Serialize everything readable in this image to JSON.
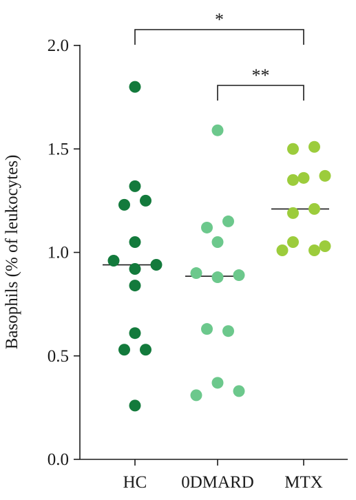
{
  "chart_data": {
    "type": "scatter",
    "ylabel": "Basophils (% of leukocytes)",
    "xlabel": "",
    "ylim": [
      0,
      2.0
    ],
    "yticks": [
      "0.0",
      "0.5",
      "1.0",
      "1.5",
      "2.0"
    ],
    "categories": [
      "HC",
      "0DMARD",
      "MTX"
    ],
    "series": [
      {
        "category": "HC",
        "color": "#137a3c",
        "points": [
          {
            "offset": 0,
            "y": 1.8
          },
          {
            "offset": 0,
            "y": 1.32
          },
          {
            "offset": -0.5,
            "y": 1.23
          },
          {
            "offset": 0.5,
            "y": 1.25
          },
          {
            "offset": 0,
            "y": 1.05
          },
          {
            "offset": -1,
            "y": 0.96
          },
          {
            "offset": 0,
            "y": 0.92
          },
          {
            "offset": 1,
            "y": 0.94
          },
          {
            "offset": 0,
            "y": 0.84
          },
          {
            "offset": 0,
            "y": 0.61
          },
          {
            "offset": -0.5,
            "y": 0.53
          },
          {
            "offset": 0.5,
            "y": 0.53
          },
          {
            "offset": 0,
            "y": 0.26
          }
        ],
        "median": 0.94
      },
      {
        "category": "0DMARD",
        "color": "#6cc88c",
        "points": [
          {
            "offset": 0,
            "y": 1.59
          },
          {
            "offset": -0.5,
            "y": 1.12
          },
          {
            "offset": 0.5,
            "y": 1.15
          },
          {
            "offset": 0,
            "y": 1.05
          },
          {
            "offset": -1,
            "y": 0.9
          },
          {
            "offset": 0,
            "y": 0.88
          },
          {
            "offset": 1,
            "y": 0.89
          },
          {
            "offset": -0.5,
            "y": 0.63
          },
          {
            "offset": 0.5,
            "y": 0.62
          },
          {
            "offset": -1,
            "y": 0.31
          },
          {
            "offset": 0,
            "y": 0.37
          },
          {
            "offset": 1,
            "y": 0.33
          }
        ],
        "median": 0.885
      },
      {
        "category": "MTX",
        "color": "#9ccc3c",
        "points": [
          {
            "offset": -0.5,
            "y": 1.5
          },
          {
            "offset": 0.5,
            "y": 1.51
          },
          {
            "offset": -0.5,
            "y": 1.35
          },
          {
            "offset": 0,
            "y": 1.36
          },
          {
            "offset": 1,
            "y": 1.37
          },
          {
            "offset": -0.5,
            "y": 1.19
          },
          {
            "offset": 0.5,
            "y": 1.21
          },
          {
            "offset": -1,
            "y": 1.01
          },
          {
            "offset": -0.5,
            "y": 1.05
          },
          {
            "offset": 0.5,
            "y": 1.01
          },
          {
            "offset": 1,
            "y": 1.03
          }
        ],
        "median": 1.21
      }
    ],
    "significance": [
      {
        "from": "HC",
        "to": "MTX",
        "label": "*"
      },
      {
        "from": "0DMARD",
        "to": "MTX",
        "label": "**"
      }
    ]
  }
}
